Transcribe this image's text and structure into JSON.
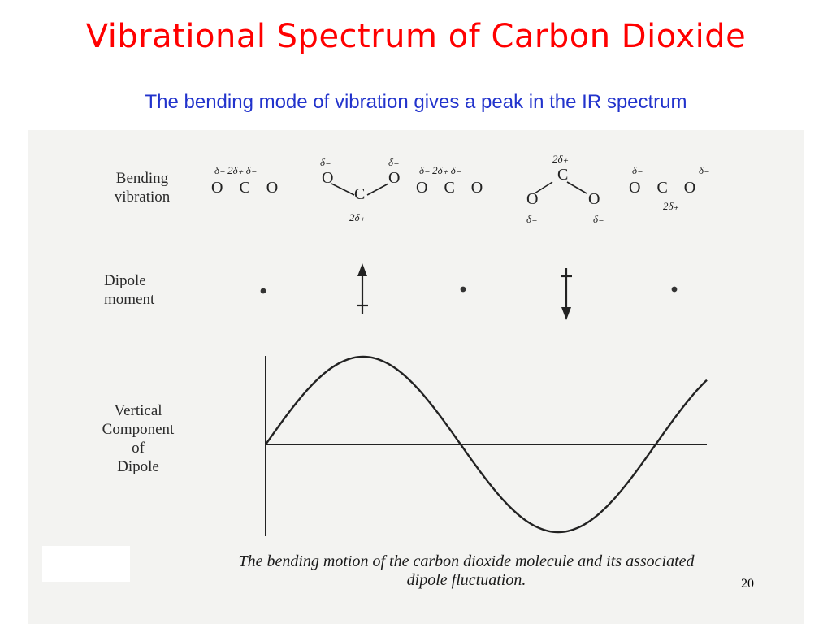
{
  "slide": {
    "title": "Vibrational Spectrum of Carbon Dioxide",
    "subtitle": "The bending mode of vibration gives a peak in the IR spectrum",
    "page_number": "20"
  },
  "figure": {
    "labels": {
      "bending_vibration": [
        "Bending",
        "vibration"
      ],
      "dipole_moment": [
        "Dipole",
        "moment"
      ],
      "vertical_component": [
        "Vertical",
        "Component",
        "of",
        "Dipole"
      ]
    },
    "caption": [
      "The bending motion of the carbon dioxide molecule and its associated",
      "dipole fluctuation."
    ],
    "molecules": [
      {
        "atoms": "O—C—O",
        "charges": "δ₋  2δ₊  δ₋"
      },
      {
        "atoms_o": "O",
        "atoms_c": "C",
        "charge_top": "δ₋",
        "charge_bottom": "2δ₊"
      },
      {
        "atoms": "O—C—O",
        "charges": "δ₋  2δ₊  δ₋"
      },
      {
        "atoms_c": "C",
        "atoms_o": "O",
        "charge_top": "2δ₊",
        "charge_bottom": "δ₋"
      },
      {
        "atoms": "O—C—O",
        "charge_top": "δ₋",
        "charge_bottom": "2δ₊"
      }
    ],
    "colors": {
      "title": "#ff0000",
      "subtitle": "#2233cc",
      "figure_background": "#f3f3f1",
      "ink": "#2a2a2a"
    }
  }
}
